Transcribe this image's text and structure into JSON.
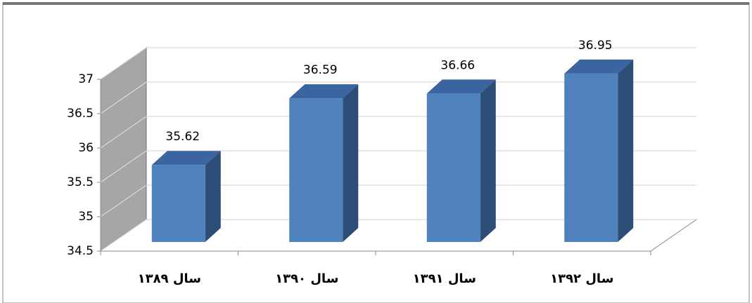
{
  "chart_data": {
    "type": "bar3d",
    "categories": [
      "سال ۱۳۸۹",
      "سال ۱۳۹۰",
      "سال ۱۳۹۱",
      "سال ۱۳۹۲"
    ],
    "values": [
      35.62,
      36.59,
      36.66,
      36.95
    ],
    "color": "#4f81bd",
    "ylim": [
      34.5,
      37
    ],
    "yticks": [
      34.5,
      35,
      35.5,
      36,
      36.5,
      37
    ],
    "grid": true
  }
}
